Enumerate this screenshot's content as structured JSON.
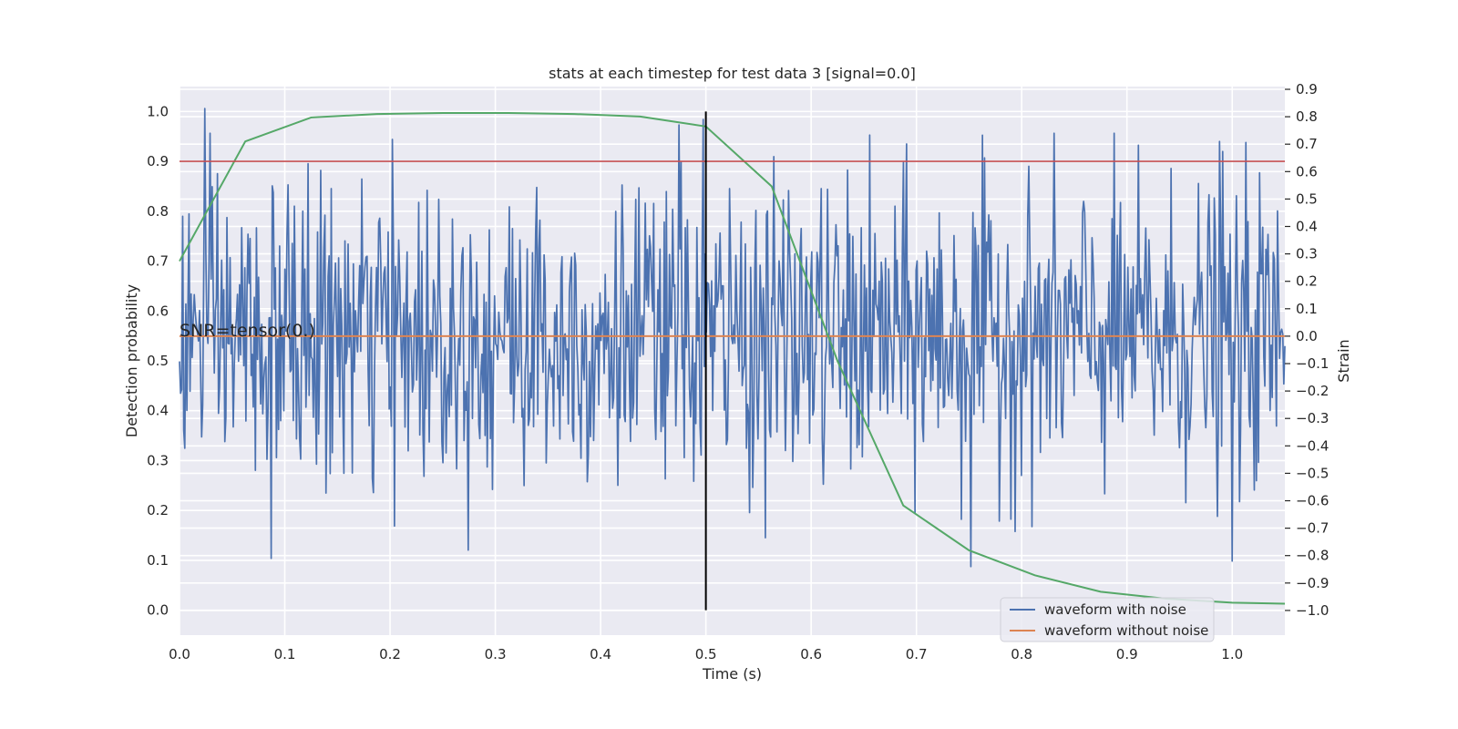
{
  "chart_data": {
    "type": "line",
    "title": "stats at each timestep for test data 3 [signal=0.0]",
    "xlabel": "Time (s)",
    "ylabel": "Detection probability",
    "y2label": "Strain",
    "xlim": [
      0.0,
      1.05
    ],
    "ylim": [
      -0.05,
      1.05
    ],
    "y2lim": [
      -1.09,
      0.91
    ],
    "xticks": [
      "0.0",
      "0.1",
      "0.2",
      "0.3",
      "0.4",
      "0.5",
      "0.6",
      "0.7",
      "0.8",
      "0.9",
      "1.0"
    ],
    "yticks": [
      "0.0",
      "0.1",
      "0.2",
      "0.3",
      "0.4",
      "0.5",
      "0.6",
      "0.7",
      "0.8",
      "0.9",
      "1.0"
    ],
    "y2ticks": [
      "0.9",
      "0.8",
      "0.7",
      "0.6",
      "0.5",
      "0.4",
      "0.3",
      "0.2",
      "0.1",
      "0.0",
      "−0.1",
      "−0.2",
      "−0.3",
      "−0.4",
      "−0.5",
      "−0.6",
      "−0.7",
      "−0.8",
      "−0.9",
      "−1.0"
    ],
    "grid": true,
    "legend_placement": "lower-right",
    "annotation": "SNR=tensor(0.)",
    "colors": {
      "noise": "#4c72b0",
      "clean": "#dd8452",
      "probability": "#55a868",
      "threshold": "#c44e52",
      "marker": "#000000",
      "background": "#eaeaf2"
    },
    "series": [
      {
        "name": "waveform with noise",
        "axis": "right",
        "description_points": 1050,
        "amplitude_std": 0.27,
        "notable_peaks": [
          {
            "x": 0.024,
            "y": 0.83
          },
          {
            "x": 0.474,
            "y": 0.77
          },
          {
            "x": 0.497,
            "y": 0.79
          },
          {
            "x": 0.988,
            "y": 0.71
          },
          {
            "x": 0.087,
            "y": -0.81
          },
          {
            "x": 0.752,
            "y": -0.84
          },
          {
            "x": 1.0,
            "y": -0.82
          }
        ]
      },
      {
        "name": "waveform without noise",
        "axis": "right",
        "x": [
          0.0,
          1.05
        ],
        "values": [
          0.0,
          0.0
        ]
      },
      {
        "axis": "left",
        "x": [
          0.0,
          0.0625,
          0.125,
          0.1875,
          0.25,
          0.3125,
          0.375,
          0.4375,
          0.5,
          0.5625,
          0.625,
          0.6875,
          0.75,
          0.8125,
          0.875,
          0.9375,
          1.0,
          1.05
        ],
        "values": [
          0.7,
          0.94,
          0.988,
          0.995,
          0.997,
          0.997,
          0.995,
          0.99,
          0.97,
          0.85,
          0.5,
          0.21,
          0.12,
          0.07,
          0.037,
          0.023,
          0.015,
          0.013
        ]
      },
      {
        "axis": "left",
        "x": [
          0.0,
          1.05
        ],
        "values": [
          0.9,
          0.9
        ]
      },
      {
        "axis": "left",
        "x": [
          0.5,
          0.5
        ],
        "values": [
          0.0,
          1.0
        ]
      }
    ]
  }
}
